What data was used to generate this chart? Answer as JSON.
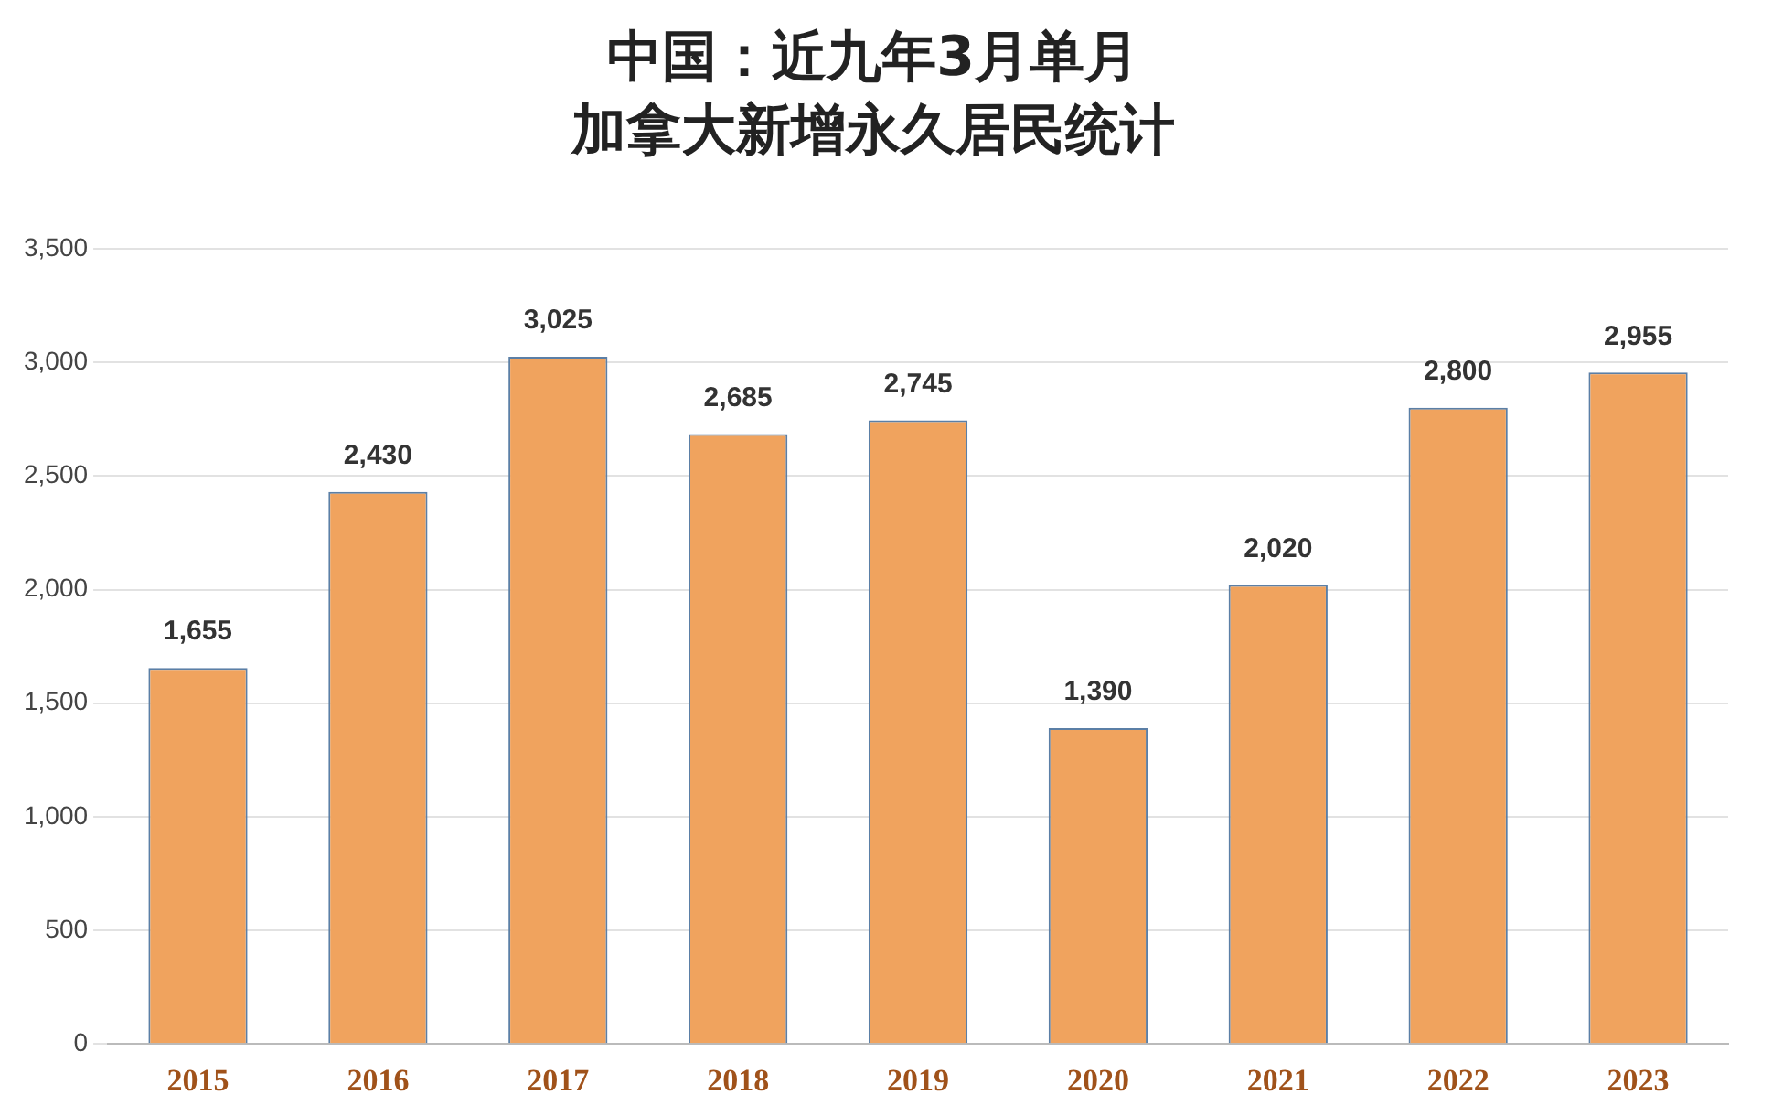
{
  "chart_data": {
    "type": "bar",
    "title": "中国：近九年3月单月",
    "subtitle": "加拿大新增永久居民统计",
    "categories": [
      "2015",
      "2016",
      "2017",
      "2018",
      "2019",
      "2020",
      "2021",
      "2022",
      "2023"
    ],
    "values": [
      1655,
      2430,
      3025,
      2685,
      2745,
      1390,
      2020,
      2800,
      2955
    ],
    "value_labels": [
      "1,655",
      "2,430",
      "3,025",
      "2,685",
      "2,745",
      "1,390",
      "2,020",
      "2,800",
      "2,955"
    ],
    "color": "#f0a35e",
    "ylim": [
      0,
      3500
    ],
    "yticks": [
      {
        "value": 0,
        "label": "0"
      },
      {
        "value": 500,
        "label": "500"
      },
      {
        "value": 1000,
        "label": "1,000"
      },
      {
        "value": 1500,
        "label": "1,500"
      },
      {
        "value": 2000,
        "label": "2,000"
      },
      {
        "value": 2500,
        "label": "2,500"
      },
      {
        "value": 3000,
        "label": "3,000"
      },
      {
        "value": 3500,
        "label": "3,500"
      }
    ],
    "grid": "y",
    "legend": false
  }
}
